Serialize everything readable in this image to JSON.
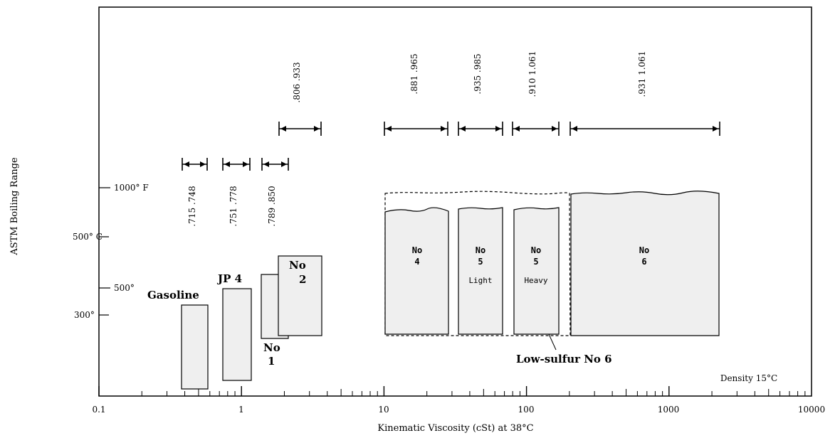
{
  "chart_data": {
    "type": "other",
    "xlabel": "Kinematic Viscosity (cSt) at 38°C",
    "ylabel": "ASTM Boiling Range",
    "x_scale": "log",
    "xlim": [
      0.1,
      10000
    ],
    "x_ticks": [
      "0.1",
      "1",
      "10",
      "100",
      "1000",
      "10000"
    ],
    "y_ticks_left": [
      {
        "label": "1000° F",
        "value_F": 1000
      },
      {
        "label": "500° C",
        "value_C": 500
      },
      {
        "label": "500°",
        "value_F": 500
      },
      {
        "label": "300°",
        "value_C": 300
      }
    ],
    "density_note": "Density 15°C",
    "fuels": [
      {
        "label": "Gasoline",
        "visc_range": [
          0.4,
          0.6
        ],
        "density": ".715 .748"
      },
      {
        "label": "JP 4",
        "visc_range": [
          0.75,
          1.1
        ],
        "density": ".751 .778"
      },
      {
        "label": "No 1",
        "visc_range": [
          1.4,
          2.0
        ],
        "density": ".789 .850"
      },
      {
        "label": "No 2",
        "visc_range": [
          1.8,
          3.5
        ],
        "density": ".806 .933"
      },
      {
        "label": "No 4",
        "visc_range": [
          10,
          28
        ],
        "density": ".881 .965"
      },
      {
        "label": "No 5 Light",
        "visc_range": [
          33,
          65
        ],
        "density": ".935 .985"
      },
      {
        "label": "No 5 Heavy",
        "visc_range": [
          78,
          165
        ],
        "density": ".910 1.061"
      },
      {
        "label": "No 6",
        "visc_range": [
          200,
          2200
        ],
        "density": ".931 1.061"
      },
      {
        "label": "Low-sulfur No 6",
        "visc_range": [
          10,
          2200
        ]
      }
    ],
    "labels": {
      "gasoline": "Gasoline",
      "jp4": "JP 4",
      "no": "No",
      "n1": "1",
      "n2": "2",
      "n4": "4",
      "n5": "5",
      "n6": "6",
      "light": "Light",
      "heavy": "Heavy",
      "lowsulfur": "Low-sulfur No 6"
    }
  }
}
